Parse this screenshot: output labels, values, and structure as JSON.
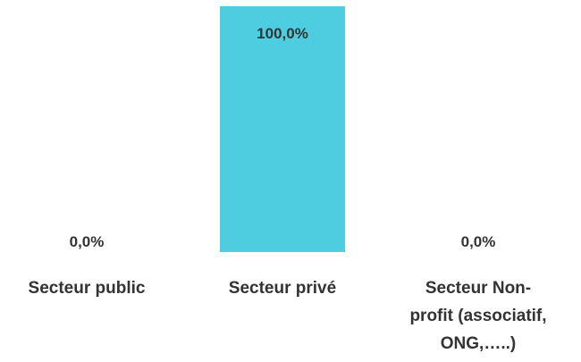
{
  "chart_data": {
    "type": "bar",
    "categories": [
      "Secteur public",
      "Secteur privé",
      "Secteur Non-profit (associatif, ONG,…..)"
    ],
    "category_label_lines": [
      [
        "Secteur public"
      ],
      [
        "Secteur privé"
      ],
      [
        "Secteur Non-",
        "profit (associatif,",
        "ONG,…..)"
      ]
    ],
    "values": [
      0,
      100,
      0
    ],
    "data_labels": [
      "0,0%",
      "100,0%",
      "0,0%"
    ],
    "unit": "%",
    "ylim": [
      0,
      100
    ],
    "grid": false,
    "legend": "none",
    "bar_color": "#4ecde0",
    "text_color": "#333333"
  }
}
